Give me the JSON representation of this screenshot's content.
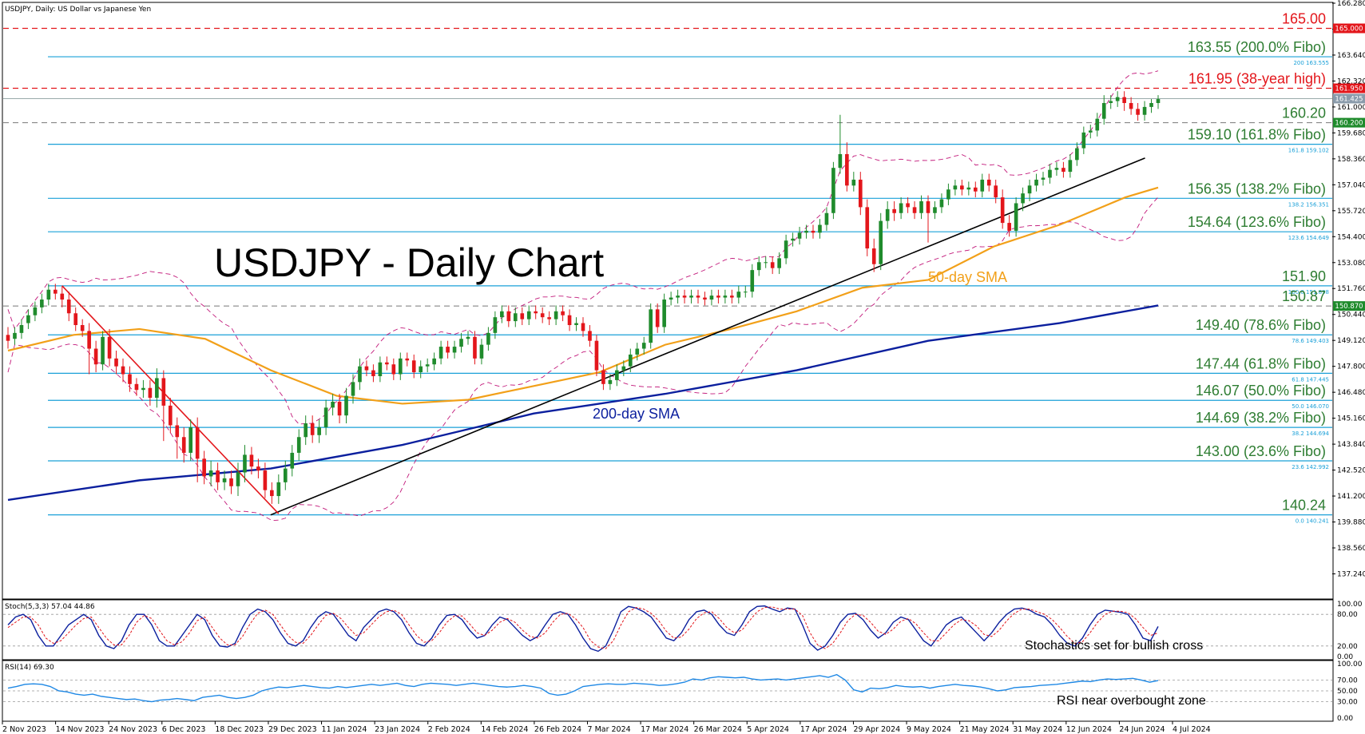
{
  "header": {
    "symbol_line": "USDJPY, Daily:  US Dollar vs Japanese Yen"
  },
  "title": "USDJPY - Daily Chart",
  "colors": {
    "up_candle": "#1f8b2c",
    "down_candle": "#e3161b",
    "fibo": "#1aa0d8",
    "sma50": "#f2a019",
    "sma200": "#0b1f9e",
    "bollinger": "#c2187a",
    "resistance": "#e3161b",
    "annot_green": "#2e7d32",
    "annot_red": "#e3161b",
    "annot_blue": "#0b1f9e",
    "stoch_main": "#0b1f9e",
    "stoch_signal": "#e3161b",
    "rsi": "#1e88e5"
  },
  "annotations": {
    "sma50_label": "50-day SMA",
    "sma200_label": "200-day SMA",
    "stoch_note": "Stochastics set for bullish cross",
    "rsi_note": "RSI near overbought zone"
  },
  "chart_data": {
    "type": "candlestick",
    "y_axis": {
      "min": 136.0,
      "max": 166.28,
      "ticks": [
        "166.280",
        "164.960",
        "163.640",
        "162.320",
        "161.000",
        "159.680",
        "158.360",
        "157.040",
        "155.720",
        "154.400",
        "153.080",
        "151.760",
        "150.440",
        "149.120",
        "147.800",
        "146.480",
        "145.160",
        "143.840",
        "142.520",
        "141.200",
        "139.880",
        "138.560",
        "137.240"
      ]
    },
    "x_axis": {
      "labels": [
        "2 Nov 2023",
        "14 Nov 2023",
        "24 Nov 2023",
        "6 Dec 2023",
        "18 Dec 2023",
        "29 Dec 2023",
        "11 Jan 2024",
        "23 Jan 2024",
        "2 Feb 2024",
        "14 Feb 2024",
        "26 Feb 2024",
        "7 Mar 2024",
        "17 Mar 2024",
        "26 Mar 2024",
        "5 Apr 2024",
        "17 Apr 2024",
        "29 Apr 2024",
        "9 May 2024",
        "21 May 2024",
        "31 May 2024",
        "12 Jun 2024",
        "24 Jun 2024",
        "4 Jul 2024"
      ]
    },
    "levels": [
      {
        "price": 165.0,
        "label": "165.00",
        "style": "dashed-red",
        "tag": "",
        "box": "165.000"
      },
      {
        "price": 163.555,
        "label": "163.55 (200.0% Fibo)",
        "style": "fibo",
        "tag": "200 163.555",
        "box": ""
      },
      {
        "price": 161.95,
        "label": "161.95 (38-year high)",
        "style": "dashed-red",
        "tag": "",
        "box": "161.950"
      },
      {
        "price": 160.2,
        "label": "160.20",
        "style": "dashed-grey",
        "tag": "",
        "box": "160.200"
      },
      {
        "price": 159.102,
        "label": "159.10 (161.8% Fibo)",
        "style": "fibo",
        "tag": "161.8 159.102",
        "box": ""
      },
      {
        "price": 156.351,
        "label": "156.35 (138.2% Fibo)",
        "style": "fibo",
        "tag": "138.2 156.351",
        "box": ""
      },
      {
        "price": 154.649,
        "label": "154.64 (123.6% Fibo)",
        "style": "fibo",
        "tag": "123.6 154.649",
        "box": ""
      },
      {
        "price": 151.898,
        "label": "151.90",
        "style": "fibo",
        "tag": "100.0 151.898",
        "box": ""
      },
      {
        "price": 150.87,
        "label": "150.87",
        "style": "dashed-grey",
        "tag": "",
        "box": "150.870"
      },
      {
        "price": 149.403,
        "label": "149.40 (78.6% Fibo)",
        "style": "fibo",
        "tag": "78.6 149.403",
        "box": ""
      },
      {
        "price": 147.445,
        "label": "147.44 (61.8% Fibo)",
        "style": "fibo",
        "tag": "61.8 147.445",
        "box": ""
      },
      {
        "price": 146.07,
        "label": "146.07 (50.0% Fibo)",
        "style": "fibo",
        "tag": "50.0 146.070",
        "box": ""
      },
      {
        "price": 144.694,
        "label": "144.69 (38.2% Fibo)",
        "style": "fibo",
        "tag": "38.2 144.694",
        "box": ""
      },
      {
        "price": 142.992,
        "label": "143.00 (23.6% Fibo)",
        "style": "fibo",
        "tag": "23.6 142.992",
        "box": ""
      },
      {
        "price": 140.241,
        "label": "140.24",
        "style": "fibo",
        "tag": "0.0 140.241",
        "box": ""
      }
    ],
    "current_price": {
      "price": 161.425,
      "box": "161.425"
    },
    "ohlc_close": [
      149.1,
      149.5,
      149.9,
      150.4,
      150.8,
      151.2,
      151.7,
      151.5,
      151.2,
      150.5,
      149.9,
      149.6,
      148.7,
      147.9,
      149.3,
      148.2,
      147.8,
      147.4,
      146.9,
      146.6,
      146.7,
      146.2,
      147.2,
      145.8,
      144.8,
      144.2,
      143.4,
      144.7,
      143.1,
      142.2,
      142.5,
      141.9,
      142.1,
      141.7,
      142.4,
      143.3,
      142.7,
      142.5,
      141.5,
      141.2,
      141.9,
      142.6,
      143.4,
      144.2,
      144.9,
      144.3,
      144.7,
      145.7,
      146.0,
      145.3,
      146.3,
      147.0,
      147.8,
      147.6,
      147.3,
      148.0,
      147.9,
      147.4,
      148.2,
      148.1,
      147.5,
      147.8,
      147.9,
      148.2,
      148.8,
      148.5,
      148.8,
      149.2,
      149.3,
      148.2,
      148.9,
      149.5,
      150.3,
      150.6,
      150.1,
      150.5,
      150.2,
      150.6,
      150.5,
      150.3,
      150.2,
      150.6,
      150.4,
      149.9,
      150.0,
      149.6,
      149.1,
      147.6,
      146.9,
      147.1,
      147.6,
      147.8,
      148.4,
      148.7,
      149.0,
      150.7,
      149.8,
      151.2,
      151.3,
      151.4,
      151.3,
      151.4,
      151.3,
      151.2,
      151.4,
      151.3,
      151.4,
      151.3,
      151.6,
      151.6,
      152.7,
      153.1,
      153.1,
      152.8,
      153.3,
      154.2,
      154.3,
      154.6,
      154.7,
      154.6,
      155.0,
      155.6,
      157.9,
      158.6,
      157.0,
      157.3,
      155.9,
      153.8,
      153.0,
      155.2,
      155.8,
      155.6,
      156.1,
      155.9,
      155.6,
      156.2,
      155.6,
      155.9,
      156.3,
      156.8,
      157.0,
      156.8,
      156.9,
      156.7,
      157.3,
      157.0,
      156.4,
      155.1,
      154.7,
      156.1,
      156.6,
      157.0,
      157.3,
      157.4,
      157.8,
      157.9,
      157.7,
      158.3,
      158.9,
      159.7,
      159.8,
      160.4,
      161.2,
      161.3,
      161.5,
      161.2,
      160.9,
      160.6,
      161.0,
      161.2,
      161.4
    ],
    "ohlc_open_offset": [
      0.3,
      -0.3,
      -0.4,
      -0.4,
      -0.4,
      -0.4,
      -0.5,
      0.2,
      0.3,
      0.7,
      0.6,
      0.3,
      0.9,
      0.8,
      -1.4,
      1.1,
      0.4,
      0.4,
      0.5,
      0.3,
      -0.1,
      0.5,
      -1.0,
      1.4,
      1.0,
      0.6,
      0.8,
      -1.3,
      1.6,
      0.9,
      -0.3,
      0.6,
      -0.2,
      0.4,
      -0.7,
      -0.9,
      0.6,
      0.2,
      1.0,
      0.3,
      -0.7,
      -0.7,
      -0.8,
      -0.8,
      -0.7,
      0.6,
      -0.4,
      -1.0,
      -0.3,
      0.7,
      -1.0,
      -0.7,
      -0.8,
      0.2,
      0.3,
      -0.7,
      0.1,
      0.5,
      -0.8,
      0.1,
      0.6,
      -0.3,
      -0.1,
      -0.3,
      -0.6,
      0.3,
      -0.3,
      -0.4,
      -0.1,
      1.1,
      -0.7,
      -0.6,
      -0.8,
      -0.3,
      0.5,
      -0.4,
      0.3,
      -0.4,
      0.1,
      0.2,
      0.1,
      -0.4,
      0.2,
      0.5,
      -0.1,
      0.4,
      0.5,
      1.5,
      0.7,
      -0.2,
      -0.5,
      -0.2,
      -0.6,
      -0.3,
      -0.3,
      -1.7,
      0.9,
      -1.4,
      -0.1,
      -0.1,
      0.1,
      -0.1,
      0.1,
      0.1,
      -0.2,
      0.1,
      -0.1,
      0.1,
      -0.3,
      0.0,
      -1.1,
      -0.4,
      0.0,
      0.3,
      -0.5,
      -0.9,
      -0.1,
      -0.3,
      -0.1,
      0.1,
      -0.4,
      -0.6,
      -2.3,
      -0.7,
      1.6,
      -0.3,
      1.4,
      2.1,
      0.8,
      -2.2,
      -0.6,
      0.2,
      -0.5,
      0.2,
      0.3,
      -0.6,
      0.6,
      -0.3,
      -0.4,
      -0.5,
      -0.2,
      0.2,
      -0.1,
      0.2,
      -0.6,
      0.3,
      0.6,
      1.3,
      0.4,
      -1.4,
      -0.5,
      -0.4,
      -0.3,
      -0.1,
      -0.4,
      -0.1,
      0.2,
      -0.6,
      -0.6,
      -0.8,
      -0.1,
      -0.6,
      -0.8,
      -0.1,
      -0.2,
      0.3,
      0.3,
      0.3,
      -0.4,
      -0.2,
      -0.2
    ],
    "ohlc_high_wick": [
      0.4,
      0.3,
      0.3,
      0.3,
      0.3,
      0.3,
      0.3,
      0.3,
      0.4,
      0.4,
      0.3,
      0.3,
      0.4,
      0.4,
      0.3,
      0.4,
      0.4,
      0.4,
      0.4,
      0.3,
      0.4,
      0.4,
      0.5,
      0.4,
      0.4,
      0.4,
      0.5,
      0.4,
      0.5,
      0.4,
      0.5,
      0.4,
      0.4,
      0.4,
      0.5,
      0.5,
      0.4,
      0.4,
      0.4,
      0.4,
      0.4,
      0.4,
      0.4,
      0.4,
      0.4,
      0.4,
      0.4,
      0.4,
      0.4,
      0.4,
      0.4,
      0.4,
      0.4,
      0.3,
      0.3,
      0.3,
      0.3,
      0.3,
      0.3,
      0.3,
      0.3,
      0.3,
      0.3,
      0.3,
      0.3,
      0.3,
      0.3,
      0.3,
      0.3,
      0.3,
      0.3,
      0.3,
      0.3,
      0.3,
      0.3,
      0.3,
      0.3,
      0.3,
      0.3,
      0.3,
      0.3,
      0.3,
      0.3,
      0.3,
      0.3,
      0.3,
      0.3,
      0.3,
      0.3,
      0.3,
      0.3,
      0.3,
      0.3,
      0.3,
      0.3,
      0.3,
      0.3,
      0.3,
      0.3,
      0.3,
      0.3,
      0.3,
      0.3,
      0.3,
      0.3,
      0.3,
      0.3,
      0.3,
      0.3,
      0.3,
      0.3,
      0.3,
      0.3,
      0.3,
      0.3,
      0.3,
      0.3,
      0.3,
      0.3,
      0.3,
      0.3,
      0.3,
      0.3,
      2.0,
      0.6,
      0.4,
      0.4,
      0.4,
      0.5,
      0.4,
      0.4,
      0.4,
      0.3,
      0.3,
      0.3,
      0.3,
      0.3,
      0.3,
      0.3,
      0.3,
      0.3,
      0.3,
      0.3,
      0.3,
      0.3,
      0.3,
      0.3,
      0.4,
      0.4,
      0.3,
      0.3,
      0.3,
      0.3,
      0.3,
      0.3,
      0.3,
      0.3,
      0.3,
      0.3,
      0.3,
      0.3,
      0.3,
      0.4,
      0.3,
      0.3,
      0.3,
      0.3,
      0.3,
      0.3,
      0.2,
      0.2
    ],
    "ohlc_low_wick": [
      0.4,
      0.3,
      0.3,
      0.3,
      0.3,
      0.3,
      0.3,
      0.3,
      0.4,
      0.4,
      0.3,
      0.3,
      1.3,
      0.4,
      0.3,
      0.4,
      0.4,
      0.4,
      0.4,
      0.3,
      0.4,
      0.4,
      0.5,
      1.8,
      0.4,
      1.1,
      0.5,
      0.4,
      1.2,
      0.4,
      0.5,
      0.4,
      0.4,
      0.4,
      0.5,
      0.5,
      0.4,
      0.4,
      0.4,
      0.4,
      0.4,
      0.4,
      0.4,
      0.4,
      0.4,
      0.4,
      0.4,
      0.4,
      0.4,
      0.4,
      0.4,
      0.4,
      0.4,
      0.3,
      0.3,
      0.3,
      0.3,
      0.3,
      0.3,
      0.3,
      0.3,
      0.3,
      0.3,
      0.3,
      0.3,
      0.3,
      0.3,
      0.3,
      0.3,
      0.3,
      0.3,
      0.3,
      0.3,
      0.3,
      0.3,
      0.3,
      0.3,
      0.3,
      0.3,
      0.3,
      0.3,
      0.3,
      0.3,
      0.3,
      0.3,
      0.3,
      0.3,
      0.3,
      0.3,
      0.3,
      0.3,
      0.3,
      0.3,
      0.3,
      0.3,
      0.3,
      0.3,
      0.3,
      0.3,
      0.3,
      0.3,
      0.3,
      0.3,
      0.3,
      0.3,
      0.3,
      0.3,
      0.3,
      0.3,
      0.3,
      0.3,
      0.3,
      0.3,
      0.3,
      0.3,
      0.3,
      0.3,
      0.3,
      0.3,
      0.3,
      0.3,
      0.3,
      0.3,
      0.3,
      0.3,
      0.3,
      0.4,
      0.4,
      0.4,
      0.3,
      0.4,
      0.4,
      0.3,
      0.3,
      0.3,
      0.3,
      1.5,
      0.3,
      0.3,
      0.3,
      0.3,
      0.3,
      0.3,
      0.3,
      0.3,
      0.3,
      0.3,
      0.3,
      0.3,
      0.3,
      0.4,
      0.4,
      0.3,
      0.3,
      0.3,
      0.3,
      0.3,
      0.3,
      0.3,
      0.3,
      0.3,
      0.3,
      0.3,
      0.3,
      0.3,
      0.4,
      0.3,
      0.3,
      0.3,
      0.3,
      0.3,
      0.3,
      0.2,
      0.2
    ],
    "sma50_points": [
      [
        0,
        148.6
      ],
      [
        10,
        149.4
      ],
      [
        20,
        149.7
      ],
      [
        30,
        149.2
      ],
      [
        40,
        147.6
      ],
      [
        50,
        146.3
      ],
      [
        60,
        145.9
      ],
      [
        70,
        146.1
      ],
      [
        80,
        146.8
      ],
      [
        90,
        147.5
      ],
      [
        100,
        148.9
      ],
      [
        110,
        149.7
      ],
      [
        120,
        150.6
      ],
      [
        130,
        151.8
      ],
      [
        140,
        152.2
      ],
      [
        150,
        153.9
      ],
      [
        160,
        155.0
      ],
      [
        170,
        156.4
      ],
      [
        175,
        156.9
      ]
    ],
    "sma200_points": [
      [
        0,
        141.0
      ],
      [
        20,
        142.0
      ],
      [
        40,
        142.6
      ],
      [
        60,
        143.8
      ],
      [
        80,
        145.4
      ],
      [
        100,
        146.4
      ],
      [
        120,
        147.6
      ],
      [
        140,
        149.1
      ],
      [
        160,
        150.0
      ],
      [
        175,
        150.9
      ]
    ],
    "trendline": [
      [
        40,
        140.24
      ],
      [
        173,
        158.4
      ]
    ],
    "downtrend": [
      [
        8,
        151.9
      ],
      [
        40,
        140.3
      ]
    ],
    "stochastics": {
      "label": "Stoch(5,3,3) 57.04 44.86",
      "levels": [
        "100.00",
        "80.00",
        "20.00",
        "0.00"
      ],
      "main": [
        60,
        75,
        80,
        70,
        40,
        20,
        20,
        40,
        60,
        70,
        80,
        70,
        40,
        20,
        15,
        30,
        60,
        80,
        80,
        60,
        30,
        20,
        20,
        40,
        60,
        80,
        70,
        40,
        20,
        18,
        25,
        55,
        80,
        90,
        85,
        70,
        45,
        25,
        20,
        30,
        55,
        75,
        85,
        80,
        60,
        40,
        30,
        55,
        70,
        85,
        90,
        85,
        70,
        45,
        25,
        20,
        35,
        60,
        78,
        80,
        70,
        50,
        35,
        40,
        60,
        75,
        70,
        55,
        40,
        30,
        38,
        60,
        80,
        85,
        80,
        60,
        35,
        15,
        10,
        20,
        50,
        85,
        95,
        92,
        85,
        75,
        55,
        35,
        30,
        45,
        70,
        85,
        88,
        80,
        60,
        45,
        40,
        60,
        85,
        95,
        96,
        90,
        85,
        92,
        90,
        60,
        25,
        12,
        20,
        40,
        65,
        80,
        82,
        70,
        50,
        35,
        45,
        65,
        75,
        70,
        50,
        30,
        20,
        40,
        60,
        70,
        75,
        60,
        45,
        30,
        45,
        65,
        80,
        90,
        92,
        88,
        80,
        75,
        60,
        40,
        25,
        20,
        35,
        60,
        80,
        88,
        86,
        84,
        80,
        60,
        35,
        30,
        57
      ],
      "signal": [
        55,
        65,
        75,
        75,
        60,
        35,
        25,
        30,
        45,
        60,
        72,
        75,
        55,
        35,
        22,
        22,
        40,
        65,
        78,
        72,
        50,
        30,
        22,
        28,
        45,
        68,
        75,
        55,
        35,
        22,
        22,
        38,
        62,
        82,
        88,
        80,
        60,
        40,
        27,
        25,
        40,
        60,
        78,
        82,
        72,
        55,
        40,
        45,
        60,
        75,
        85,
        88,
        80,
        60,
        40,
        27,
        30,
        45,
        65,
        77,
        77,
        62,
        45,
        40,
        50,
        65,
        72,
        65,
        50,
        38,
        35,
        45,
        65,
        80,
        82,
        72,
        55,
        30,
        18,
        15,
        30,
        60,
        85,
        93,
        90,
        82,
        68,
        48,
        35,
        37,
        52,
        72,
        83,
        85,
        72,
        55,
        45,
        50,
        68,
        85,
        93,
        94,
        90,
        90,
        90,
        78,
        45,
        22,
        15,
        25,
        45,
        68,
        80,
        78,
        65,
        48,
        42,
        52,
        67,
        72,
        62,
        45,
        30,
        30,
        45,
        60,
        70,
        68,
        58,
        42,
        38,
        50,
        68,
        82,
        90,
        90,
        85,
        80,
        70,
        55,
        38,
        25,
        28,
        45,
        65,
        80,
        86,
        86,
        83,
        72,
        55,
        40,
        45
      ]
    },
    "rsi": {
      "label": "RSI(14) 69.30",
      "levels": [
        "100.00",
        "70.00",
        "50.00",
        "30.00",
        "0.00"
      ],
      "values": [
        55,
        58,
        62,
        63,
        62,
        58,
        50,
        48,
        44,
        42,
        44,
        40,
        38,
        36,
        34,
        35,
        32,
        30,
        33,
        34,
        36,
        34,
        32,
        38,
        40,
        42,
        38,
        36,
        38,
        42,
        50,
        54,
        57,
        56,
        58,
        60,
        58,
        56,
        55,
        58,
        56,
        58,
        60,
        62,
        60,
        62,
        64,
        60,
        58,
        62,
        64,
        63,
        62,
        60,
        62,
        64,
        62,
        60,
        58,
        57,
        58,
        60,
        58,
        55,
        45,
        42,
        44,
        50,
        58,
        60,
        62,
        63,
        62,
        62,
        64,
        63,
        62,
        60,
        61,
        63,
        66,
        72,
        70,
        74,
        76,
        75,
        74,
        75,
        72,
        70,
        71,
        72,
        70,
        72,
        74,
        76,
        78,
        75,
        80,
        70,
        52,
        48,
        55,
        54,
        56,
        60,
        58,
        57,
        58,
        55,
        58,
        60,
        62,
        60,
        59,
        57,
        54,
        50,
        52,
        56,
        57,
        58,
        60,
        61,
        62,
        64,
        66,
        68,
        67,
        70,
        72,
        71,
        72,
        73,
        70,
        66,
        69
      ]
    }
  }
}
